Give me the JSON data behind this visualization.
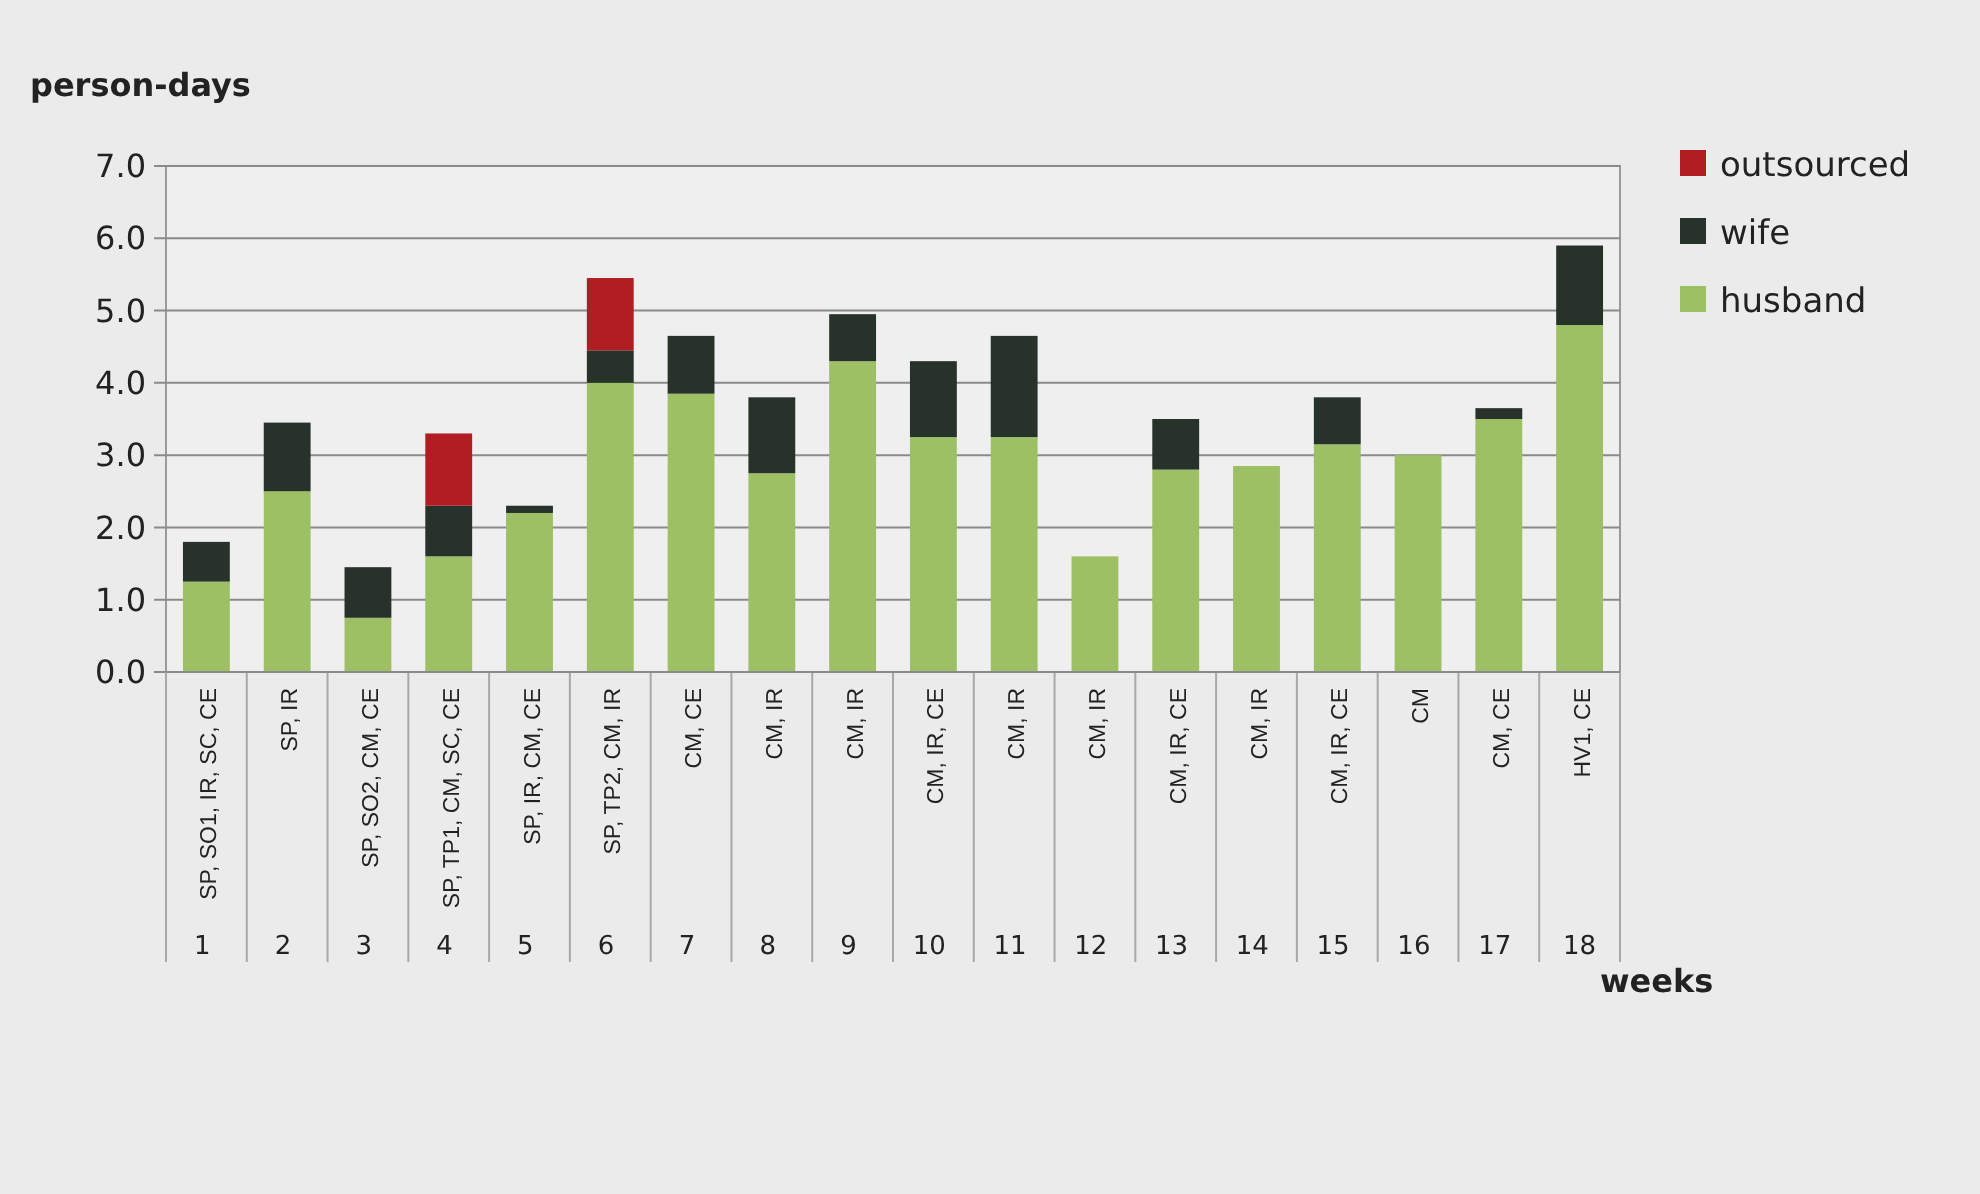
{
  "chart_data": {
    "type": "bar",
    "stacked": true,
    "ylabel": "person-days",
    "categories": [
      "SP, SO1, IR, SC, CE",
      "SP, IR",
      "SP, SO2, CM, CE",
      "SP, TP1, CM, SC, CE",
      "SP, IR, CM, CE",
      "SP, TP2, CM, IR",
      "CM, CE",
      "CM, IR",
      "CM, IR",
      "CM, IR, CE",
      "CM, IR",
      "CM, IR",
      "CM, IR, CE",
      "CM, IR",
      "CM, IR, CE",
      "CM",
      "CM, CE",
      "HV1, CE"
    ],
    "series": [
      {
        "name": "husband",
        "color": "#9dc064",
        "values": [
          1.25,
          2.5,
          0.75,
          1.6,
          2.2,
          4.0,
          3.85,
          2.75,
          4.3,
          3.25,
          3.25,
          1.6,
          2.8,
          2.85,
          3.15,
          3.0,
          3.5,
          4.8
        ]
      },
      {
        "name": "wife",
        "color": "#27332a",
        "values": [
          0.55,
          0.95,
          0.7,
          0.7,
          0.1,
          0.45,
          0.8,
          1.05,
          0.65,
          1.05,
          1.4,
          null,
          0.7,
          null,
          0.65,
          null,
          0.15,
          1.1
        ]
      },
      {
        "name": "outsourced",
        "color": "#b01e23",
        "values": [
          null,
          null,
          null,
          1.0,
          null,
          1.0,
          null,
          null,
          null,
          null,
          null,
          null,
          null,
          null,
          null,
          null,
          null,
          null
        ]
      }
    ],
    "ylim": [
      0,
      7
    ],
    "yticks": [
      {
        "value": 0,
        "label": "0.0"
      },
      {
        "value": 1,
        "label": "1.0"
      },
      {
        "value": 2,
        "label": "2.0"
      },
      {
        "value": 3,
        "label": "3.0"
      },
      {
        "value": 4,
        "label": "4.0"
      },
      {
        "value": 5,
        "label": "5.0"
      },
      {
        "value": 6,
        "label": "6.0"
      },
      {
        "value": 7,
        "label": "7.0"
      }
    ],
    "grid": "y",
    "legend": "right",
    "annotations": [
      "1 2 3 4 5 6 7 8 9 10 11 12 13 14 15 16 17 18",
      "weeks"
    ]
  }
}
